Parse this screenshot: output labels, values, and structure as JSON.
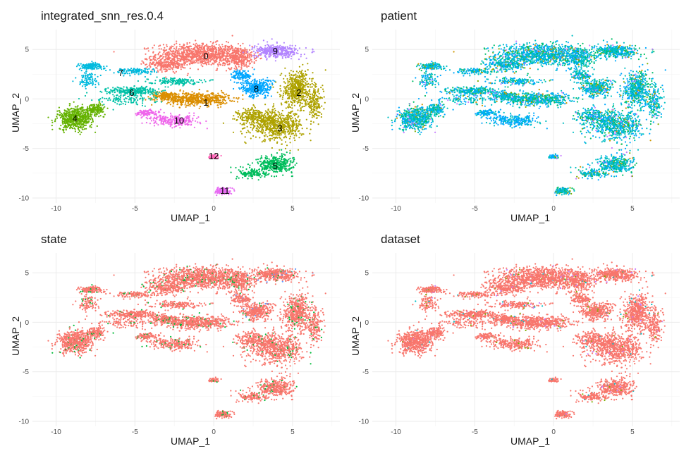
{
  "panels_colors": {
    "cluster": [
      "#F8766D",
      "#DB8E00",
      "#AEA200",
      "#64B200",
      "#00BD5C",
      "#00C1A7",
      "#00BADE",
      "#00A6FF",
      "#B385FF",
      "#EF67EB",
      "#FF63B6",
      "#E76BF3",
      "#FF61C3"
    ]
  },
  "chart_data": [
    {
      "type": "scatter",
      "title": "integrated_snn_res.0.4",
      "xlabel": "UMAP_1",
      "ylabel": "UMAP_2",
      "xlim": [
        -11.5,
        8
      ],
      "ylim": [
        -10.5,
        7
      ],
      "xticks": [
        -10,
        -5,
        0,
        5
      ],
      "yticks": [
        5,
        0,
        -5,
        -10
      ],
      "grid": true,
      "legend": "none",
      "cluster_labels": [
        {
          "label": "0",
          "x": -0.5,
          "y": 4.3,
          "color": "#F8766D"
        },
        {
          "label": "1",
          "x": -0.5,
          "y": -0.4,
          "color": "#DB8E00"
        },
        {
          "label": "2",
          "x": 5.4,
          "y": 0.6,
          "color": "#AEA200"
        },
        {
          "label": "3",
          "x": 4.2,
          "y": -3.0,
          "color": "#AEA200"
        },
        {
          "label": "4",
          "x": -8.8,
          "y": -2.0,
          "color": "#64B200"
        },
        {
          "label": "5",
          "x": 3.9,
          "y": -6.8,
          "color": "#00BD5C"
        },
        {
          "label": "6",
          "x": -5.2,
          "y": 0.6,
          "color": "#00C1A7"
        },
        {
          "label": "7",
          "x": -5.9,
          "y": 2.6,
          "color": "#00BADE"
        },
        {
          "label": "8",
          "x": 2.7,
          "y": 1.0,
          "color": "#00A6FF"
        },
        {
          "label": "9",
          "x": 3.9,
          "y": 4.8,
          "color": "#B385FF"
        },
        {
          "label": "10",
          "x": -2.2,
          "y": -2.2,
          "color": "#EF67EB"
        },
        {
          "label": "11",
          "x": 0.7,
          "y": -9.3,
          "color": "#FF61C3"
        },
        {
          "label": "12",
          "x": 0.0,
          "y": -5.8,
          "color": "#FF63B6"
        }
      ]
    },
    {
      "type": "scatter",
      "title": "patient",
      "xlabel": "UMAP_1",
      "ylabel": "UMAP_2",
      "xlim": [
        -11.5,
        8
      ],
      "ylim": [
        -10.5,
        7
      ],
      "xticks": [
        -10,
        -5,
        0,
        5
      ],
      "yticks": [
        5,
        0,
        -5,
        -10
      ],
      "grid": true,
      "legend": "none",
      "colors": [
        "#00BFC4",
        "#00A9FF",
        "#00BE67",
        "#7CAE00",
        "#C77CFF",
        "#CD9600"
      ]
    },
    {
      "type": "scatter",
      "title": "state",
      "xlabel": "UMAP_1",
      "ylabel": "UMAP_2",
      "xlim": [
        -11.5,
        8
      ],
      "ylim": [
        -10.5,
        7
      ],
      "xticks": [
        -10,
        -5,
        0,
        5
      ],
      "yticks": [
        5,
        0,
        -5,
        -10
      ],
      "grid": true,
      "legend": "none",
      "colors": [
        "#F8766D",
        "#00BA38",
        "#619CFF"
      ]
    },
    {
      "type": "scatter",
      "title": "dataset",
      "xlabel": "UMAP_1",
      "ylabel": "UMAP_2",
      "xlim": [
        -11.5,
        8
      ],
      "ylim": [
        -10.5,
        7
      ],
      "xticks": [
        -10,
        -5,
        0,
        5
      ],
      "yticks": [
        5,
        0,
        -5,
        -10
      ],
      "grid": true,
      "legend": "none",
      "colors": [
        "#F8766D",
        "#C77CFF",
        "#00BFC4",
        "#7CAE00"
      ]
    }
  ]
}
